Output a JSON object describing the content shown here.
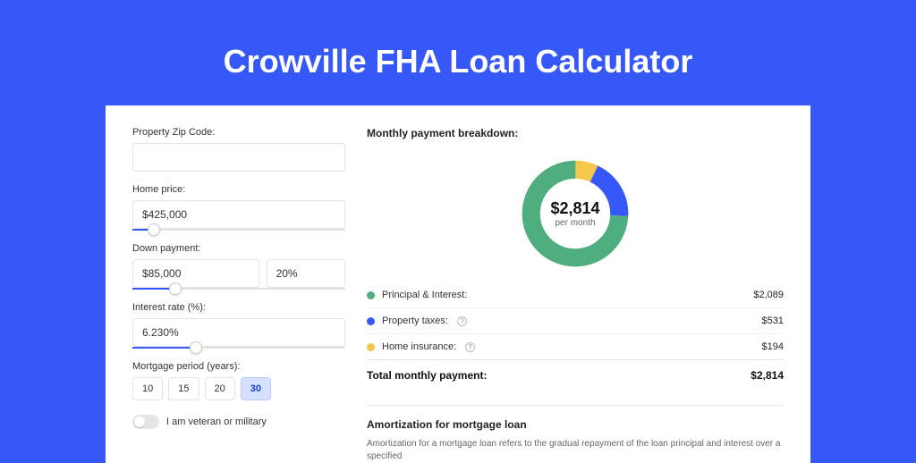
{
  "page": {
    "title": "Crowville FHA Loan Calculator",
    "bg_color": "#3758f9"
  },
  "form": {
    "zip": {
      "label": "Property Zip Code:",
      "value": ""
    },
    "home_price": {
      "label": "Home price:",
      "value": "$425,000",
      "slider_pct": 10
    },
    "down_payment": {
      "label": "Down payment:",
      "amount": "$85,000",
      "percent": "20%",
      "slider_pct": 20
    },
    "interest_rate": {
      "label": "Interest rate (%):",
      "value": "6.230%",
      "slider_pct": 30
    },
    "mortgage_period": {
      "label": "Mortgage period (years):",
      "options": [
        "10",
        "15",
        "20",
        "30"
      ],
      "selected": "30"
    },
    "veteran": {
      "label": "I am veteran or military",
      "checked": false
    }
  },
  "breakdown": {
    "title": "Monthly payment breakdown:",
    "center_amount": "$2,814",
    "center_sub": "per month",
    "slices": [
      {
        "label": "Principal & Interest:",
        "value": "$2,089",
        "color": "#4fae80",
        "pct": 74.2
      },
      {
        "label": "Property taxes:",
        "value": "$531",
        "color": "#3758f9",
        "pct": 18.9,
        "help": true
      },
      {
        "label": "Home insurance:",
        "value": "$194",
        "color": "#f5c84c",
        "pct": 6.9,
        "help": true
      }
    ],
    "total_label": "Total monthly payment:",
    "total_value": "$2,814"
  },
  "amortization": {
    "title": "Amortization for mortgage loan",
    "body": "Amortization for a mortgage loan refers to the gradual repayment of the loan principal and interest over a specified"
  }
}
